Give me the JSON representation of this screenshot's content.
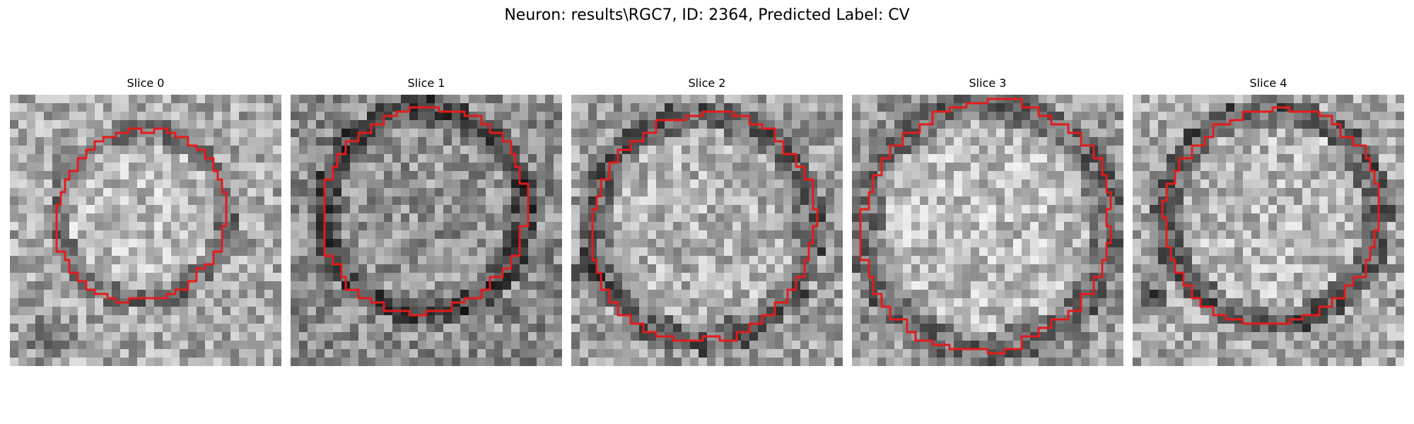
{
  "figure": {
    "title": "Neuron: results\\RGC7, ID: 2364, Predicted Label: CV"
  },
  "panels": [
    {
      "title": "Slice 0"
    },
    {
      "title": "Slice 1"
    },
    {
      "title": "Slice 2"
    },
    {
      "title": "Slice 3"
    },
    {
      "title": "Slice 4"
    }
  ],
  "colors": {
    "contour": "#e41a1c",
    "background": "#ffffff"
  }
}
